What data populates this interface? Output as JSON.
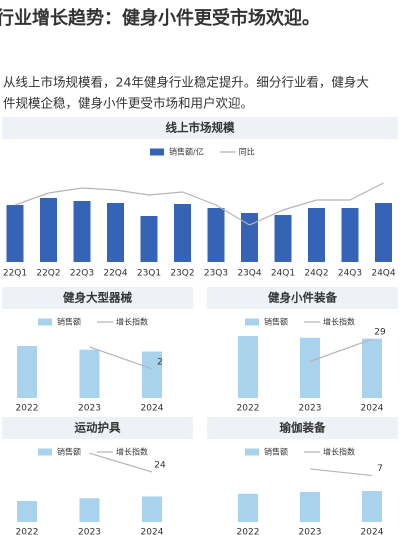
{
  "title": "行业增长趋势：健身小件更受市场欢迎。",
  "paragraph": [
    "从线上市场规模看，24年健身行业稳定提升。细分行业看，健身大",
    "件规模企稳，健身小件更受市场和用户欢迎。"
  ],
  "chart_data": [
    {
      "type": "bar",
      "title": "线上市场规模",
      "categories": [
        "22Q1",
        "22Q2",
        "22Q3",
        "22Q4",
        "23Q1",
        "23Q2",
        "23Q3",
        "23Q4",
        "24Q1",
        "24Q2",
        "24Q3",
        "24Q4"
      ],
      "series": [
        {
          "name": "销售额/亿",
          "color": "#3563b5",
          "values": [
            57,
            64,
            61,
            59,
            46,
            58,
            54,
            49,
            47,
            54,
            54,
            59
          ]
        },
        {
          "name": "同比",
          "color": "#b5b5b5",
          "type": "line",
          "axis": "y2",
          "values": [
            57,
            69,
            74,
            72,
            67,
            70,
            57,
            37,
            52,
            62,
            62,
            79
          ]
        }
      ],
      "ylim": [
        0,
        80
      ],
      "y2lim": [
        0,
        80
      ]
    },
    {
      "type": "bar",
      "title": "健身大型器械",
      "categories": [
        "2022",
        "2023",
        "2024"
      ],
      "series": [
        {
          "name": "销售额",
          "color": "#a9d3ec",
          "values": [
            57,
            53,
            51
          ]
        },
        {
          "name": "增长指数",
          "color": "#b5b5b5",
          "type": "line",
          "axis": "y2",
          "values": [
            null,
            3.5,
            2
          ]
        }
      ],
      "ylim": [
        0,
        80
      ],
      "y2lim": [
        0,
        5
      ]
    },
    {
      "type": "bar",
      "title": "健身小件装备",
      "categories": [
        "2022",
        "2023",
        "2024"
      ],
      "series": [
        {
          "name": "销售额",
          "color": "#a9d3ec",
          "values": [
            68,
            66,
            65
          ]
        },
        {
          "name": "增长指数",
          "color": "#b5b5b5",
          "type": "line",
          "axis": "y2",
          "values": [
            null,
            18,
            29
          ]
        }
      ],
      "ylim": [
        0,
        80
      ],
      "y2lim": [
        0,
        36
      ]
    },
    {
      "type": "bar",
      "title": "运动护具",
      "categories": [
        "2022",
        "2023",
        "2024"
      ],
      "series": [
        {
          "name": "销售额",
          "color": "#a9d3ec",
          "values": [
            23,
            26,
            28
          ]
        },
        {
          "name": "增长指数",
          "color": "#b5b5b5",
          "type": "line",
          "axis": "y2",
          "values": [
            null,
            33,
            24
          ]
        }
      ],
      "ylim": [
        0,
        80
      ],
      "y2lim": [
        0,
        35
      ]
    },
    {
      "type": "bar",
      "title": "瑜伽装备",
      "categories": [
        "2022",
        "2023",
        "2024"
      ],
      "series": [
        {
          "name": "销售额",
          "color": "#a9d3ec",
          "values": [
            31,
            33,
            34
          ]
        },
        {
          "name": "增长指数",
          "color": "#b5b5b5",
          "type": "line",
          "axis": "y2",
          "values": [
            null,
            8,
            7
          ]
        }
      ],
      "ylim": [
        0,
        80
      ],
      "y2lim": [
        0,
        11
      ]
    }
  ]
}
